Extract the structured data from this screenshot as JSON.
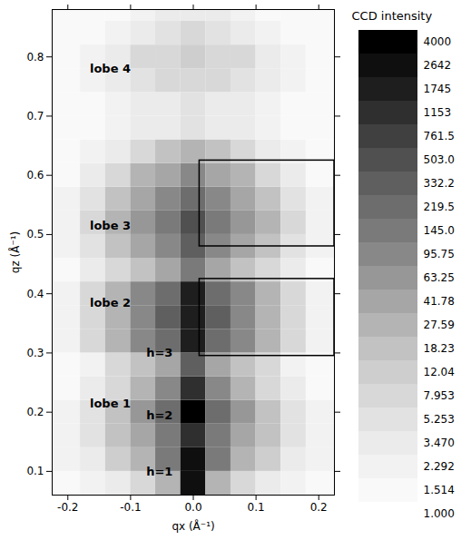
{
  "chart_data": {
    "type": "heatmap",
    "xlabel": "qx (Å⁻¹)",
    "ylabel": "qz (Å⁻¹)",
    "xlim": [
      -0.225,
      0.225
    ],
    "xticks": [
      -0.2,
      -0.1,
      {
        "value": 0,
        "label": "0.0"
      },
      0.1,
      0.2
    ],
    "ylim": [
      0.06,
      0.88
    ],
    "yticks": [
      0.1,
      0.2,
      0.3,
      0.4,
      0.5,
      0.6,
      0.7,
      0.8
    ],
    "cells": {
      "x_edges": [
        -0.225,
        -0.18,
        -0.14,
        -0.1,
        -0.06,
        -0.02,
        0.02,
        0.06,
        0.1,
        0.14,
        0.18,
        0.225
      ],
      "y_edges": [
        0.06,
        0.1,
        0.14,
        0.18,
        0.22,
        0.26,
        0.3,
        0.34,
        0.38,
        0.42,
        0.46,
        0.5,
        0.54,
        0.58,
        0.62,
        0.66,
        0.7,
        0.74,
        0.78,
        0.82,
        0.86,
        0.88
      ],
      "values": [
        [
          2,
          3,
          5,
          10,
          40,
          3000,
          40,
          10,
          5,
          3,
          2
        ],
        [
          3,
          5,
          15,
          40,
          150,
          3000,
          150,
          40,
          15,
          5,
          3
        ],
        [
          3,
          6,
          20,
          60,
          200,
          1500,
          200,
          60,
          20,
          6,
          3
        ],
        [
          3,
          6,
          25,
          80,
          300,
          4000,
          300,
          80,
          25,
          6,
          3
        ],
        [
          2,
          4,
          12,
          40,
          120,
          1500,
          120,
          40,
          12,
          4,
          2
        ],
        [
          2,
          3,
          8,
          20,
          60,
          400,
          60,
          20,
          8,
          3,
          2
        ],
        [
          3,
          8,
          30,
          100,
          300,
          2000,
          300,
          100,
          30,
          8,
          3
        ],
        [
          3,
          10,
          40,
          130,
          400,
          2500,
          400,
          130,
          40,
          10,
          3
        ],
        [
          3,
          8,
          30,
          100,
          300,
          2000,
          300,
          100,
          30,
          8,
          3
        ],
        [
          2,
          4,
          10,
          25,
          60,
          200,
          60,
          25,
          10,
          4,
          2
        ],
        [
          3,
          6,
          20,
          50,
          120,
          400,
          120,
          50,
          20,
          6,
          3
        ],
        [
          3,
          8,
          30,
          80,
          200,
          600,
          200,
          80,
          30,
          8,
          3
        ],
        [
          3,
          6,
          20,
          50,
          120,
          300,
          120,
          50,
          20,
          6,
          3
        ],
        [
          2,
          4,
          12,
          30,
          60,
          120,
          60,
          30,
          12,
          4,
          2
        ],
        [
          2,
          3,
          5,
          10,
          20,
          30,
          20,
          10,
          5,
          3,
          2
        ],
        [
          2,
          2,
          3,
          4,
          5,
          6,
          5,
          4,
          3,
          2,
          2
        ],
        [
          2,
          2,
          3,
          4,
          5,
          6,
          5,
          4,
          3,
          2,
          2
        ],
        [
          2,
          3,
          4,
          6,
          9,
          10,
          9,
          6,
          4,
          3,
          2
        ],
        [
          2,
          3,
          5,
          8,
          12,
          14,
          12,
          8,
          5,
          3,
          2
        ],
        [
          2,
          2,
          3,
          5,
          7,
          8,
          7,
          5,
          3,
          2,
          2
        ],
        [
          2,
          2,
          2,
          3,
          4,
          4,
          4,
          3,
          2,
          2,
          2
        ]
      ]
    },
    "annotations": [
      {
        "text": "lobe 4",
        "x": -0.165,
        "y": 0.78
      },
      {
        "text": "lobe 3",
        "x": -0.165,
        "y": 0.515
      },
      {
        "text": "lobe 2",
        "x": -0.165,
        "y": 0.385
      },
      {
        "text": "h=3",
        "x": -0.075,
        "y": 0.3
      },
      {
        "text": "lobe 1",
        "x": -0.165,
        "y": 0.215
      },
      {
        "text": "h=2",
        "x": -0.075,
        "y": 0.195
      },
      {
        "text": "h=1",
        "x": -0.075,
        "y": 0.1
      }
    ],
    "boxes": [
      {
        "x": [
          0.01,
          0.225
        ],
        "y": [
          0.48,
          0.625
        ]
      },
      {
        "x": [
          0.01,
          0.225
        ],
        "y": [
          0.295,
          0.425
        ]
      }
    ],
    "color_bar": {
      "title": "CCD intensity",
      "levels": [
        {
          "value": 1,
          "label": "1.000"
        },
        1.514,
        2.292,
        {
          "value": 3.47,
          "label": "3.470"
        },
        5.253,
        7.953,
        12.04,
        18.23,
        27.59,
        41.78,
        63.25,
        95.75,
        {
          "value": 145,
          "label": "145.0"
        },
        219.5,
        332.2,
        {
          "value": 503,
          "label": "503.0"
        },
        761.5,
        1153,
        1745,
        2642,
        4000
      ]
    }
  }
}
